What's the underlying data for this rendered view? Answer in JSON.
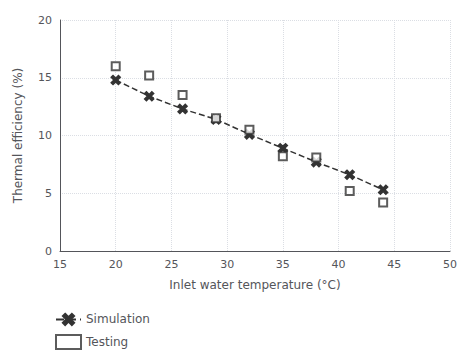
{
  "chart_data": {
    "type": "line",
    "xlabel": "Inlet water temperature (°C)",
    "ylabel": "Thermal efficiency (%)",
    "x": [
      20,
      23,
      26,
      29,
      32,
      35,
      38,
      41,
      44
    ],
    "series": [
      {
        "name": "Simulation",
        "type": "line",
        "color": "#333333",
        "marker": "x",
        "line_style": "dashed",
        "values": [
          14.8,
          13.4,
          12.3,
          11.4,
          10.1,
          8.9,
          7.7,
          6.6,
          5.3
        ]
      },
      {
        "name": "Testing",
        "type": "scatter",
        "color": "#333333",
        "marker": "square",
        "values": [
          16.0,
          15.2,
          13.5,
          11.5,
          10.5,
          8.2,
          8.1,
          5.2,
          4.2
        ]
      }
    ],
    "xlim": [
      15,
      50
    ],
    "ylim": [
      0,
      20
    ],
    "xticks": [
      15,
      20,
      25,
      30,
      35,
      40,
      45,
      50
    ],
    "yticks": [
      0,
      5,
      10,
      15,
      20
    ],
    "grid": true,
    "legend": "bottom left"
  }
}
